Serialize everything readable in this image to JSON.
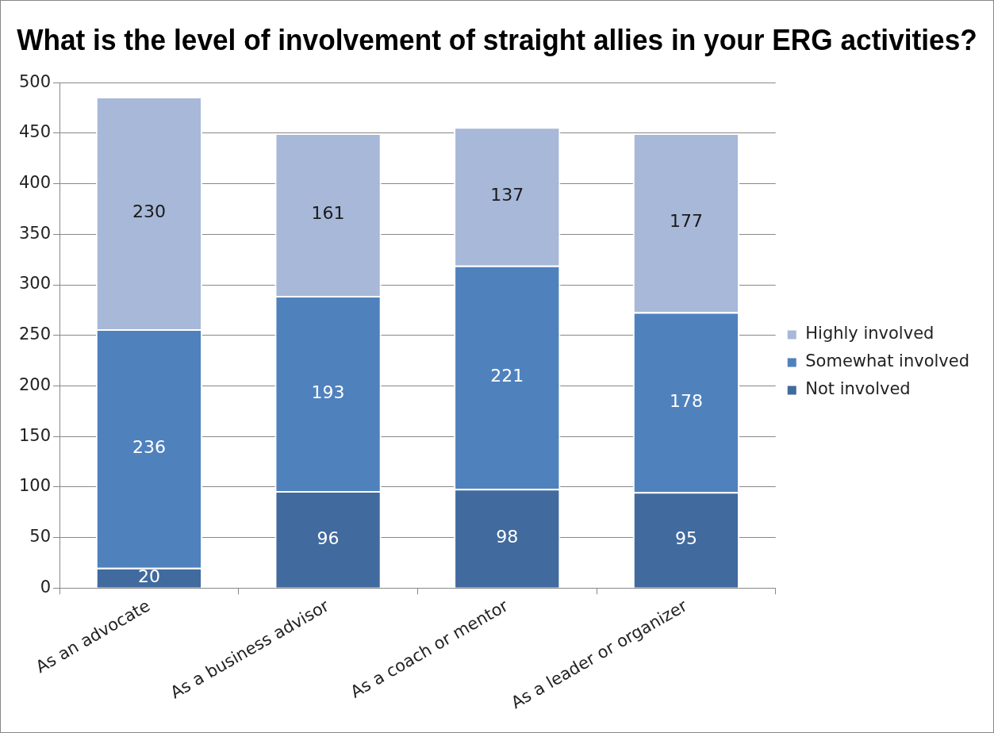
{
  "chart_data": {
    "type": "bar",
    "title": "What is the level of involvement of straight allies in your ERG activities?",
    "categories": [
      "As an advocate",
      "As a business advisor",
      "As a coach or mentor",
      "As a leader or organizer"
    ],
    "stacked": true,
    "series": [
      {
        "name": "Not involved",
        "color": "#416a9e",
        "values": [
          20,
          96,
          98,
          95
        ]
      },
      {
        "name": "Somewhat involved",
        "color": "#4f81bd",
        "values": [
          236,
          193,
          221,
          178
        ]
      },
      {
        "name": "Highly involved",
        "color": "#a7b8d8",
        "values": [
          230,
          161,
          137,
          177
        ]
      }
    ],
    "ylim": [
      0,
      500
    ],
    "yticks": [
      0,
      50,
      100,
      150,
      200,
      250,
      300,
      350,
      400,
      450,
      500
    ],
    "grid": "y",
    "legend": "right",
    "data_labels": true
  }
}
